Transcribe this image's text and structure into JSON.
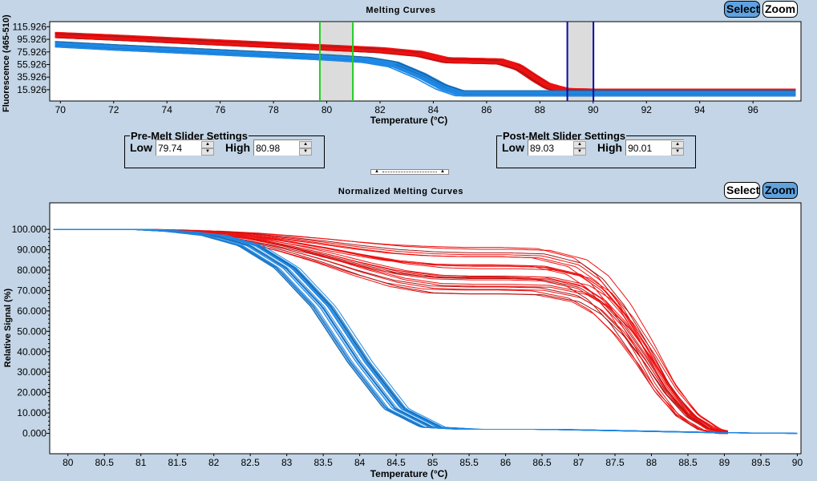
{
  "top_panel": {
    "title": "Melting Curves",
    "select_label": "Select",
    "zoom_label": "Zoom",
    "active_mode": "select",
    "ylabel": "Fluorescence (465-510)",
    "xlabel": "Temperature (°C)"
  },
  "pre_melt": {
    "legend": "Pre-Melt Slider Settings",
    "low_label": "Low",
    "low_value": "79.74",
    "high_label": "High",
    "high_value": "80.98"
  },
  "post_melt": {
    "legend": "Post-Melt Slider Settings",
    "low_label": "Low",
    "low_value": "89.03",
    "high_label": "High",
    "high_value": "90.01"
  },
  "splitter": {
    "up_icon": "▲",
    "down_icon": "▲"
  },
  "bottom_panel": {
    "title": "Normalized Melting Curves",
    "select_label": "Select",
    "zoom_label": "Zoom",
    "active_mode": "zoom",
    "ylabel": "Relative Signal (%)",
    "xlabel": "Temperature (°C)"
  },
  "colors": {
    "background": "#c3d5e6",
    "red_group": "#ee1111",
    "red_group_edge": "#a01818",
    "blue_group": "#1e88e5",
    "blue_group_edge": "#1a5f9a",
    "pre_melt_cursor": "#22cc22",
    "post_melt_cursor": "#0a0aa0",
    "cursor_band": "#dcdcdc",
    "active_button": "#5fa2e0"
  },
  "chart_data": [
    {
      "type": "line",
      "title": "Melting Curves",
      "xlabel": "Temperature (°C)",
      "ylabel": "Fluorescence (465-510)",
      "xlim": [
        69.6,
        97.8
      ],
      "ylim": [
        -2,
        124
      ],
      "xticks": [
        70,
        72,
        74,
        76,
        78,
        80,
        82,
        84,
        86,
        88,
        90,
        92,
        94,
        96
      ],
      "yticks": [
        "115.926",
        "95.926",
        "75.926",
        "55.926",
        "35.926",
        "15.926"
      ],
      "ytick_values": [
        115.926,
        95.926,
        75.926,
        55.926,
        35.926,
        15.926
      ],
      "pre_melt_cursors": [
        79.74,
        80.98
      ],
      "post_melt_cursors": [
        89.03,
        90.01
      ],
      "series": [
        {
          "name": "red-group",
          "color": "#ee1111",
          "count": 24,
          "x": [
            69.8,
            72,
            74,
            76,
            78,
            80,
            82,
            83.5,
            84.5,
            85.5,
            86.5,
            87.2,
            87.8,
            88.3,
            89,
            90,
            92,
            94,
            96,
            97.6
          ],
          "y": [
            103,
            99,
            95,
            91,
            87,
            83,
            79,
            73,
            63,
            62,
            61,
            52,
            35,
            22,
            14,
            13,
            13,
            13,
            13,
            13
          ]
        },
        {
          "name": "blue-group",
          "color": "#1e88e5",
          "count": 24,
          "x": [
            69.8,
            72,
            74,
            76,
            78,
            80,
            81.5,
            82.5,
            83.5,
            84.3,
            85,
            86,
            88,
            90,
            92,
            94,
            96,
            97.6
          ],
          "y": [
            88,
            83,
            79,
            75,
            71,
            67,
            63,
            56,
            38,
            20,
            10,
            10,
            10,
            10,
            10,
            10,
            10,
            10
          ]
        }
      ]
    },
    {
      "type": "line",
      "title": "Normalized Melting Curves",
      "xlabel": "Temperature (°C)",
      "ylabel": "Relative Signal (%)",
      "xlim": [
        79.75,
        90.05
      ],
      "ylim": [
        -10,
        113
      ],
      "xticks": [
        "80",
        "80.5",
        "81",
        "81.5",
        "82",
        "82.5",
        "83",
        "83.5",
        "84",
        "84.5",
        "85",
        "85.5",
        "86",
        "86.5",
        "87",
        "87.5",
        "88",
        "88.5",
        "89",
        "89.5",
        "90"
      ],
      "xtick_values": [
        80,
        80.5,
        81,
        81.5,
        82,
        82.5,
        83,
        83.5,
        84,
        84.5,
        85,
        85.5,
        86,
        86.5,
        87,
        87.5,
        88,
        88.5,
        89,
        89.5,
        90
      ],
      "yticks": [
        "100.000",
        "90.000",
        "80.000",
        "70.000",
        "60.000",
        "50.000",
        "40.000",
        "30.000",
        "20.000",
        "10.000",
        "0.000"
      ],
      "ytick_values": [
        100,
        90,
        80,
        70,
        60,
        50,
        40,
        30,
        20,
        10,
        0
      ],
      "series": [
        {
          "name": "red-group",
          "color": "#ee1111",
          "count": 24,
          "x": [
            79.8,
            81,
            81.5,
            82,
            82.5,
            83,
            83.5,
            84,
            84.5,
            85,
            85.5,
            86,
            86.5,
            87,
            87.3,
            87.6,
            87.9,
            88.2,
            88.5,
            88.8,
            89.05
          ],
          "y": [
            100,
            100,
            99.3,
            98,
            96,
            93,
            89.5,
            85.5,
            82,
            80,
            79.5,
            79.5,
            79,
            75,
            68,
            56,
            40,
            22,
            9,
            2,
            0
          ],
          "plateau_range": [
            63,
            87
          ]
        },
        {
          "name": "blue-group",
          "color": "#1e88e5",
          "count": 24,
          "x": [
            79.8,
            81,
            81.5,
            82,
            82.5,
            83,
            83.5,
            84,
            84.5,
            85,
            85.5,
            86,
            86.5,
            87,
            88,
            89,
            90
          ],
          "y": [
            100,
            100,
            99,
            97,
            92,
            81,
            62,
            35,
            12,
            3,
            2,
            2,
            2,
            1.7,
            1,
            0.3,
            0
          ]
        }
      ]
    }
  ]
}
